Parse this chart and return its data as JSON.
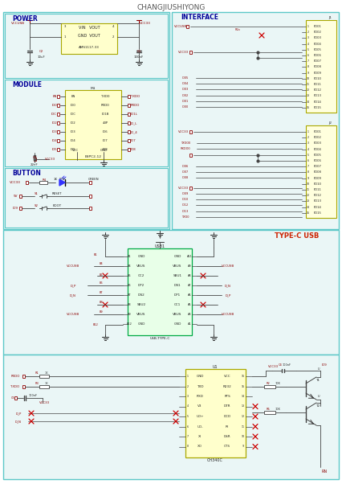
{
  "title": "CHANGJIUSHIYONG",
  "bg_color": "#ffffff",
  "panel_bg": "#eaf6f6",
  "panel_border": "#5cc8c8",
  "ic_fill": "#ffffcc",
  "ic_border": "#aaa800",
  "conn_fill": "#ffffdd",
  "conn_border": "#aaa800",
  "usb_fill": "#e8ffe8",
  "usb_border": "#00aa44",
  "text_red": "#cc2200",
  "text_blue": "#000099",
  "text_dark": "#222222",
  "wire_color": "#8b0000",
  "line_color": "#444444",
  "red_x": "#cc0000",
  "gnd_color": "#333333"
}
